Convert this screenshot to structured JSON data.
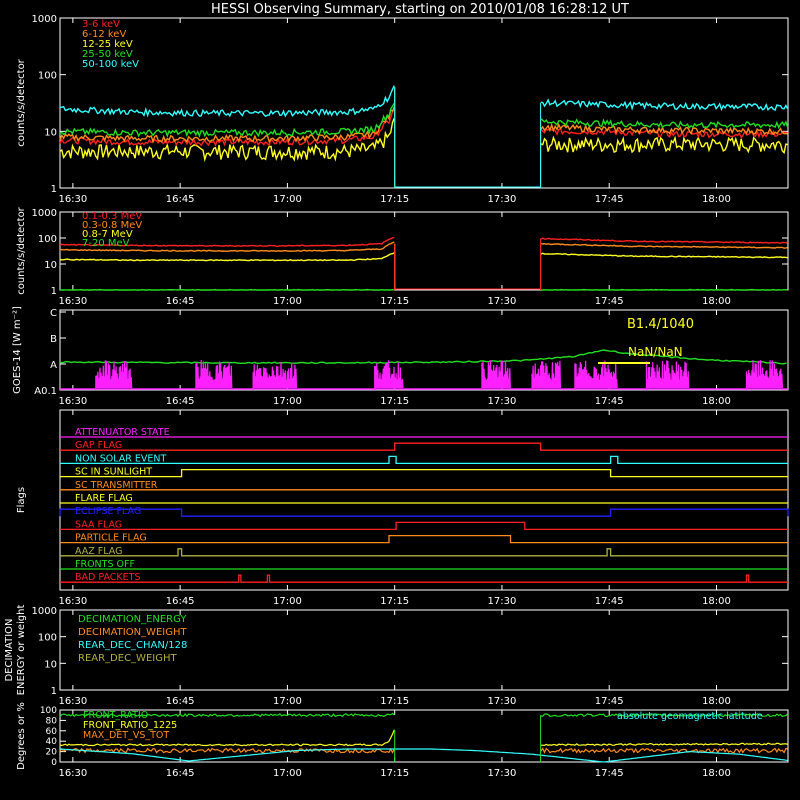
{
  "title": "HESSI Observing Summary, starting on 2010/01/08 16:28:12 UT",
  "colors": {
    "background": "#000000",
    "axis": "#ffffff",
    "red": "#ff2020",
    "orange": "#ff8c1a",
    "yellow": "#ffff20",
    "green": "#20e020",
    "cyan": "#30ffff",
    "magenta": "#ff20ff",
    "blue": "#2020ff",
    "olive": "#b0b040"
  },
  "time_axis": {
    "start": "16:28:12",
    "end": "18:10",
    "tick_labels": [
      "16:30",
      "16:45",
      "17:00",
      "17:15",
      "17:30",
      "17:45",
      "18:00"
    ],
    "tick_minutes": [
      1.8,
      16.8,
      31.8,
      46.8,
      61.8,
      76.8,
      91.8
    ],
    "total_minutes": 101.8
  },
  "chart_data": [
    {
      "type": "line",
      "name": "front-detector-rates",
      "ylabel": "counts/s/detector",
      "yscale": "log",
      "ylim": [
        1,
        1000
      ],
      "ytick_labels": [
        "1",
        "10",
        "100",
        "1000"
      ],
      "ytick_values": [
        1,
        10,
        100,
        1000
      ],
      "data_gap_minutes": [
        46.8,
        67.2
      ],
      "series": [
        {
          "name": "3-6 keV",
          "color": "red",
          "x": [
            0,
            10,
            20,
            30,
            40,
            44,
            46,
            46.8,
            67.2,
            75,
            85,
            101.8
          ],
          "y": [
            7,
            6.5,
            6.5,
            6.5,
            7,
            8,
            15,
            25,
            10,
            10,
            9,
            9
          ]
        },
        {
          "name": "6-12 keV",
          "color": "orange",
          "x": [
            0,
            10,
            20,
            30,
            40,
            44,
            46,
            46.8,
            67.2,
            75,
            85,
            101.8
          ],
          "y": [
            8,
            7.5,
            7.5,
            7.5,
            8,
            9,
            18,
            30,
            12,
            11,
            10.5,
            10
          ]
        },
        {
          "name": "12-25 keV",
          "color": "yellow",
          "x": [
            0,
            10,
            20,
            30,
            40,
            44,
            46,
            46.8,
            67.2,
            75,
            85,
            101.8
          ],
          "y": [
            4.5,
            4.5,
            4.5,
            4.5,
            4.5,
            5,
            8,
            15,
            6,
            6,
            6,
            6
          ]
        },
        {
          "name": "25-50 keV",
          "color": "green",
          "x": [
            0,
            10,
            20,
            30,
            40,
            44,
            46,
            46.8,
            67.2,
            75,
            85,
            101.8
          ],
          "y": [
            10,
            9.5,
            9.5,
            9.5,
            10,
            11,
            20,
            35,
            15,
            14,
            13,
            13
          ]
        },
        {
          "name": "50-100 keV",
          "color": "cyan",
          "x": [
            0,
            10,
            20,
            30,
            40,
            44,
            46,
            46.8,
            67.2,
            75,
            85,
            101.8
          ],
          "y": [
            25,
            22,
            21,
            21,
            22,
            25,
            40,
            60,
            32,
            30,
            28,
            27
          ]
        }
      ]
    },
    {
      "type": "line",
      "name": "rear-detector-rates",
      "ylabel": "counts/s/detector",
      "yscale": "log",
      "ylim": [
        1,
        1000
      ],
      "ytick_labels": [
        "1",
        "10",
        "100",
        "1000"
      ],
      "ytick_values": [
        1,
        10,
        100,
        1000
      ],
      "data_gap_minutes": [
        46.8,
        67.2
      ],
      "series": [
        {
          "name": "0.1-0.3 MeV",
          "color": "red",
          "x": [
            0,
            10,
            20,
            30,
            40,
            45,
            46.8,
            67.2,
            80,
            101.8
          ],
          "y": [
            55,
            52,
            50,
            50,
            52,
            60,
            110,
            95,
            75,
            65
          ]
        },
        {
          "name": "0.3-0.8 MeV",
          "color": "orange",
          "x": [
            0,
            10,
            20,
            30,
            40,
            45,
            46.8,
            67.2,
            80,
            101.8
          ],
          "y": [
            35,
            33,
            32,
            32,
            33,
            38,
            70,
            60,
            48,
            42
          ]
        },
        {
          "name": "0.8-7 MeV",
          "color": "yellow",
          "x": [
            0,
            10,
            20,
            30,
            40,
            45,
            46.8,
            67.2,
            80,
            101.8
          ],
          "y": [
            15,
            14,
            14,
            14,
            14,
            16,
            28,
            25,
            20,
            18
          ]
        },
        {
          "name": "7-20 MeV",
          "color": "green",
          "x": [
            0,
            101.8
          ],
          "y": [
            1,
            1
          ]
        }
      ]
    },
    {
      "type": "line",
      "name": "goes-flux",
      "ylabel": "GOES-14 [W m⁻²]",
      "ytick_labels": [
        "A0.1",
        "A",
        "B",
        "C"
      ],
      "annotation_flare": "B1.4/1040",
      "annotation_nan": "NaN/NaN",
      "series": [
        {
          "name": "GOES",
          "color": "green",
          "x": [
            0,
            20,
            40,
            55,
            65,
            72,
            76,
            80,
            90,
            101.8
          ],
          "y": [
            0.35,
            0.34,
            0.34,
            0.35,
            0.37,
            0.42,
            0.5,
            0.45,
            0.38,
            0.33
          ]
        }
      ],
      "magenta_bursts": [
        [
          5,
          10
        ],
        [
          19,
          24
        ],
        [
          27,
          33
        ],
        [
          44,
          48
        ],
        [
          59,
          63
        ],
        [
          66,
          70
        ],
        [
          72,
          78
        ],
        [
          82,
          88
        ],
        [
          96,
          101
        ]
      ]
    },
    {
      "type": "table",
      "name": "flags",
      "ylabel": "Flags",
      "flags": [
        {
          "name": "ATTENUATOR STATE",
          "color": "magenta",
          "on": []
        },
        {
          "name": "GAP FLAG",
          "color": "red",
          "on": [
            [
              46.8,
              67.2
            ]
          ]
        },
        {
          "name": "NON SOLAR EVENT",
          "color": "cyan",
          "on": [
            [
              46,
              47
            ],
            [
              77,
              78
            ]
          ]
        },
        {
          "name": "SC IN SUNLIGHT",
          "color": "yellow",
          "on": [
            [
              17,
              77
            ]
          ]
        },
        {
          "name": "SC TRANSMITTER",
          "color": "orange",
          "on": []
        },
        {
          "name": "FLARE FLAG",
          "color": "yellow",
          "on": []
        },
        {
          "name": "ECLIPSE FLAG",
          "color": "blue",
          "on": [
            [
              0,
              17
            ],
            [
              77,
              101.8
            ]
          ]
        },
        {
          "name": "SAA FLAG",
          "color": "red",
          "on": [
            [
              47,
              65
            ]
          ]
        },
        {
          "name": "PARTICLE FLAG",
          "color": "orange",
          "on": [
            [
              46,
              63
            ]
          ]
        },
        {
          "name": "AAZ FLAG",
          "color": "olive",
          "on": [
            [
              16.5,
              17
            ],
            [
              76.5,
              77
            ]
          ]
        },
        {
          "name": "FRONTS OFF",
          "color": "green",
          "on": []
        },
        {
          "name": "BAD PACKETS",
          "color": "red",
          "on": [
            [
              25,
              25.3
            ],
            [
              29,
              29.3
            ],
            [
              96,
              96.3
            ]
          ]
        }
      ]
    },
    {
      "type": "line",
      "name": "decimation",
      "ylabel": "DECIMATION ENERGY or weight",
      "yscale": "log",
      "ylim": [
        1,
        1000
      ],
      "ytick_labels": [
        "1",
        "10",
        "100",
        "1000"
      ],
      "ytick_values": [
        1,
        10,
        100,
        1000
      ],
      "series": [
        {
          "name": "DECIMATION_ENERGY",
          "color": "green"
        },
        {
          "name": "DECIMATION_WEIGHT",
          "color": "orange"
        },
        {
          "name": "REAR_DEC_CHAN/128",
          "color": "cyan"
        },
        {
          "name": "REAR_DEC_WEIGHT",
          "color": "olive"
        }
      ]
    },
    {
      "type": "line",
      "name": "front-ratio",
      "ylabel": "Degrees or %",
      "ylim": [
        0,
        100
      ],
      "ytick_labels": [
        "0",
        "20",
        "40",
        "60",
        "80",
        "100"
      ],
      "ytick_values": [
        0,
        20,
        40,
        60,
        80,
        100
      ],
      "annotation": "absolute geomagnetic latitude",
      "data_gap_minutes": [
        46.8,
        67.2
      ],
      "series": [
        {
          "name": "FRONT_RATIO",
          "color": "green",
          "x": [
            0,
            46,
            46.8,
            67.2,
            101.8
          ],
          "y": [
            90,
            90,
            92,
            90,
            90
          ]
        },
        {
          "name": "FRONT_RATIO_1225",
          "color": "yellow",
          "x": [
            0,
            45,
            46,
            46.8,
            67.2,
            101.8
          ],
          "y": [
            33,
            33,
            40,
            62,
            33,
            35
          ]
        },
        {
          "name": "MAX_DET_VS_TOT",
          "color": "orange",
          "x": [
            0,
            46.8,
            67.2,
            101.8
          ],
          "y": [
            22,
            22,
            22,
            22
          ]
        },
        {
          "name": "absolute geomagnetic latitude",
          "color": "cyan",
          "x": [
            0,
            10,
            18,
            33,
            40,
            46,
            52,
            58,
            66,
            76,
            88,
            95,
            101.8
          ],
          "y": [
            25,
            16,
            2,
            22,
            25,
            25,
            25,
            22,
            15,
            0,
            20,
            15,
            3
          ]
        }
      ]
    }
  ]
}
